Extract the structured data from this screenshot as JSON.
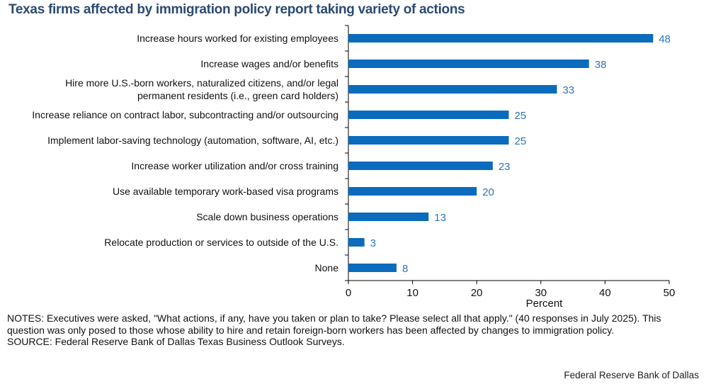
{
  "chart_data": {
    "type": "bar",
    "orientation": "horizontal",
    "title": "Texas firms affected by immigration policy report taking variety of actions",
    "categories": [
      [
        "Increase hours worked for existing employees"
      ],
      [
        "Increase wages and/or benefits"
      ],
      [
        "Hire more U.S.-born workers, naturalized citizens, and/or legal",
        "permanent residents (i.e., green card holders)"
      ],
      [
        "Increase reliance on contract labor, subcontracting and/or outsourcing"
      ],
      [
        "Implement labor-saving technology (automation, software, AI, etc.)"
      ],
      [
        "Increase worker utilization and/or cross training"
      ],
      [
        "Use available temporary work-based visa programs"
      ],
      [
        "Scale down business operations"
      ],
      [
        "Relocate production or services to outside of the U.S."
      ],
      [
        "None"
      ]
    ],
    "values": [
      47.5,
      37.5,
      32.5,
      25,
      25,
      22.5,
      20,
      12.5,
      2.5,
      7.5
    ],
    "data_labels": [
      "48",
      "38",
      "33",
      "25",
      "25",
      "23",
      "20",
      "13",
      "3",
      "8"
    ],
    "xlabel": "Percent",
    "ylabel": "",
    "xlim": [
      0,
      50
    ],
    "xticks": [
      "0",
      "10",
      "20",
      "30",
      "40",
      "50"
    ],
    "grid": false,
    "colors": {
      "bar": "#0b6bbd",
      "label": "#2e75b6",
      "title": "#2b4a72"
    }
  },
  "notes": [
    "NOTES: Executives were asked, \"What actions, if any, have you taken or plan to take? Please select all that apply.\" (40 responses in July 2025). This question was only posed to those whose ability to hire and retain foreign-born workers has been affected by changes to immigration policy.",
    "SOURCE: Federal Reserve Bank of Dallas Texas Business Outlook Surveys."
  ],
  "credit": "Federal Reserve Bank of Dallas"
}
